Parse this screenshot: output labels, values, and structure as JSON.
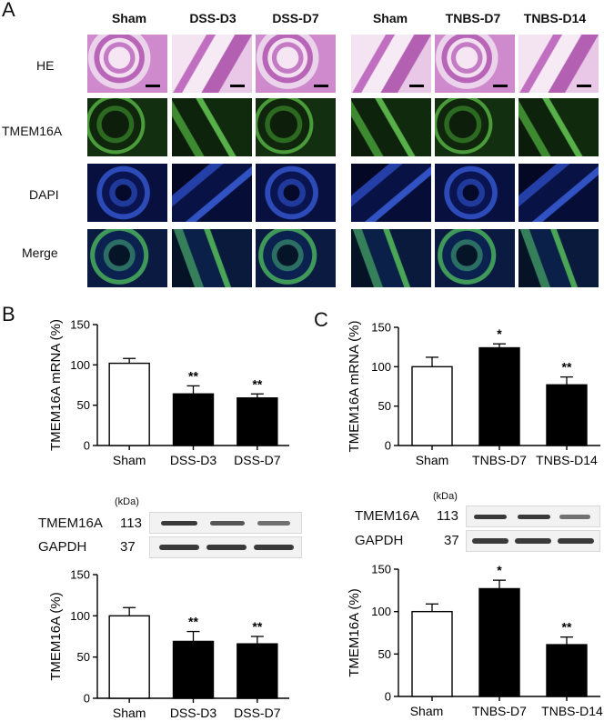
{
  "panelA": {
    "letter": "A",
    "columns": [
      "Sham",
      "DSS-D3",
      "DSS-D7",
      "Sham",
      "TNBS-D7",
      "TNBS-D14"
    ],
    "rows": [
      "HE",
      "TMEM16A",
      "DAPI",
      "Merge"
    ]
  },
  "panelB": {
    "letter": "B",
    "mrna_chart": {
      "type": "bar",
      "categories": [
        "Sham",
        "DSS-D3",
        "DSS-D7"
      ],
      "values": [
        102,
        64,
        59
      ],
      "errors": [
        6,
        10,
        5
      ],
      "significance": [
        "",
        "**",
        "**"
      ],
      "fills": [
        "#ffffff",
        "#000000",
        "#000000"
      ],
      "ylabel": "TMEM16A mRNA (%)",
      "ylim": [
        0,
        150
      ],
      "yticks": [
        0,
        50,
        100,
        150
      ]
    },
    "blot": {
      "kda_label": "(kDa)",
      "rows": [
        {
          "name": "TMEM16A",
          "kda": "113"
        },
        {
          "name": "GAPDH",
          "kda": "37"
        }
      ]
    },
    "protein_chart": {
      "type": "bar",
      "categories": [
        "Sham",
        "DSS-D3",
        "DSS-D7"
      ],
      "values": [
        100,
        69,
        66
      ],
      "errors": [
        10,
        12,
        9
      ],
      "significance": [
        "",
        "**",
        "**"
      ],
      "fills": [
        "#ffffff",
        "#000000",
        "#000000"
      ],
      "ylabel": "TMEM16A (%)",
      "ylim": [
        0,
        150
      ],
      "yticks": [
        0,
        50,
        100,
        150
      ]
    }
  },
  "panelC": {
    "letter": "C",
    "mrna_chart": {
      "type": "bar",
      "categories": [
        "Sham",
        "TNBS-D7",
        "TNBS-D14"
      ],
      "values": [
        100,
        124,
        77
      ],
      "errors": [
        12,
        5,
        10
      ],
      "significance": [
        "",
        "*",
        "**"
      ],
      "fills": [
        "#ffffff",
        "#000000",
        "#000000"
      ],
      "ylabel": "TMEM16A mRNA (%)",
      "ylim": [
        0,
        150
      ],
      "yticks": [
        0,
        50,
        100,
        150
      ]
    },
    "blot": {
      "kda_label": "(kDa)",
      "rows": [
        {
          "name": "TMEM16A",
          "kda": "113"
        },
        {
          "name": "GAPDH",
          "kda": "37"
        }
      ]
    },
    "protein_chart": {
      "type": "bar",
      "categories": [
        "Sham",
        "TNBS-D7",
        "TNBS-D14"
      ],
      "values": [
        100,
        127,
        61
      ],
      "errors": [
        9,
        10,
        9
      ],
      "significance": [
        "",
        "*",
        "**"
      ],
      "fills": [
        "#ffffff",
        "#000000",
        "#000000"
      ],
      "ylabel": "TMEM16A (%)",
      "ylim": [
        0,
        150
      ],
      "yticks": [
        0,
        50,
        100,
        150
      ]
    }
  },
  "chart_data": [
    {
      "type": "bar",
      "categories": [
        "Sham",
        "DSS-D3",
        "DSS-D7"
      ],
      "values": [
        102,
        64,
        59
      ],
      "ylabel": "TMEM16A mRNA (%)",
      "ylim": [
        0,
        150
      ]
    },
    {
      "type": "bar",
      "categories": [
        "Sham",
        "DSS-D3",
        "DSS-D7"
      ],
      "values": [
        100,
        69,
        66
      ],
      "ylabel": "TMEM16A (%)",
      "ylim": [
        0,
        150
      ]
    },
    {
      "type": "bar",
      "categories": [
        "Sham",
        "TNBS-D7",
        "TNBS-D14"
      ],
      "values": [
        100,
        124,
        77
      ],
      "ylabel": "TMEM16A mRNA (%)",
      "ylim": [
        0,
        150
      ]
    },
    {
      "type": "bar",
      "categories": [
        "Sham",
        "TNBS-D7",
        "TNBS-D14"
      ],
      "values": [
        100,
        127,
        61
      ],
      "ylabel": "TMEM16A (%)",
      "ylim": [
        0,
        150
      ]
    }
  ]
}
